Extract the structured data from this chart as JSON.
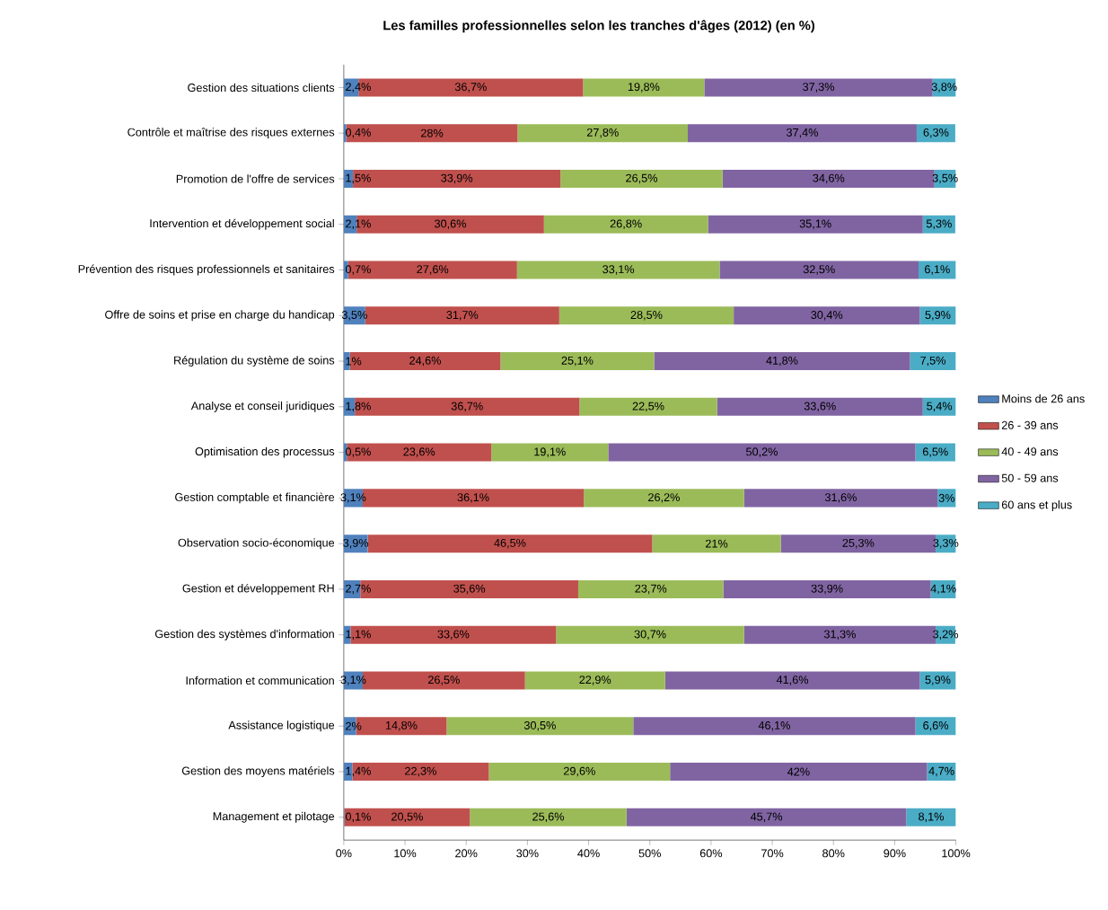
{
  "chart_data": {
    "type": "bar",
    "orientation": "horizontal",
    "stacked": true,
    "title": "Les familles professionnelles selon les tranches d'âges (2012) (en %)",
    "categories": [
      "Gestion des situations clients",
      "Contrôle et maîtrise des risques externes",
      "Promotion de l'offre de services",
      "Intervention et développement social",
      "Prévention des risques professionnels et sanitaires",
      "Offre de soins et prise en charge du handicap",
      "Régulation du système de soins",
      "Analyse et conseil juridiques",
      "Optimisation des processus",
      "Gestion comptable et financière",
      "Observation socio-économique",
      "Gestion et développement RH",
      "Gestion des systèmes d'information",
      "Information et communication",
      "Assistance logistique",
      "Gestion des moyens matériels",
      "Management et pilotage"
    ],
    "series": [
      {
        "name": "Moins de 26 ans",
        "color": "#4f81bd",
        "values": [
          2.4,
          0.4,
          1.5,
          2.1,
          0.7,
          3.5,
          1,
          1.8,
          0.5,
          3.1,
          3.9,
          2.7,
          1.1,
          3.1,
          2,
          1.4,
          0.1
        ],
        "value_labels": [
          "2,4%",
          "0,4%",
          "1,5%",
          "2,1%",
          "0,7%",
          "3,5%",
          "1%",
          "1,8%",
          "0,5%",
          "3,1%",
          "3,9%",
          "2,7%",
          "1,1%",
          "3,1%",
          "2%",
          "1,4%",
          "0,1%"
        ]
      },
      {
        "name": "26 - 39 ans",
        "color": "#c0504d",
        "values": [
          36.7,
          28,
          33.9,
          30.6,
          27.6,
          31.7,
          24.6,
          36.7,
          23.6,
          36.1,
          46.5,
          35.6,
          33.6,
          26.5,
          14.8,
          22.3,
          20.5
        ],
        "value_labels": [
          "36,7%",
          "28%",
          "33,9%",
          "30,6%",
          "27,6%",
          "31,7%",
          "24,6%",
          "36,7%",
          "23,6%",
          "36,1%",
          "46,5%",
          "35,6%",
          "33,6%",
          "26,5%",
          "14,8%",
          "22,3%",
          "20,5%"
        ]
      },
      {
        "name": "40 - 49 ans",
        "color": "#9bbb59",
        "values": [
          19.8,
          27.8,
          26.5,
          26.8,
          33.1,
          28.5,
          25.1,
          22.5,
          19.1,
          26.2,
          21,
          23.7,
          30.7,
          22.9,
          30.5,
          29.6,
          25.6
        ],
        "value_labels": [
          "19,8%",
          "27,8%",
          "26,5%",
          "26,8%",
          "33,1%",
          "28,5%",
          "25,1%",
          "22,5%",
          "19,1%",
          "26,2%",
          "21%",
          "23,7%",
          "30,7%",
          "22,9%",
          "30,5%",
          "29,6%",
          "25,6%"
        ]
      },
      {
        "name": "50 - 59 ans",
        "color": "#8064a2",
        "values": [
          37.3,
          37.4,
          34.6,
          35.1,
          32.5,
          30.4,
          41.8,
          33.6,
          50.2,
          31.6,
          25.3,
          33.9,
          31.3,
          41.6,
          46.1,
          42,
          45.7
        ],
        "value_labels": [
          "37,3%",
          "37,4%",
          "34,6%",
          "35,1%",
          "32,5%",
          "30,4%",
          "41,8%",
          "33,6%",
          "50,2%",
          "31,6%",
          "25,3%",
          "33,9%",
          "31,3%",
          "41,6%",
          "46,1%",
          "42%",
          "45,7%"
        ]
      },
      {
        "name": "60 ans et plus",
        "color": "#4bacc6",
        "values": [
          3.8,
          6.3,
          3.5,
          5.3,
          6.1,
          5.9,
          7.5,
          5.4,
          6.5,
          3,
          3.3,
          4.1,
          3.2,
          5.9,
          6.6,
          4.7,
          8.1
        ],
        "value_labels": [
          "3,8%",
          "6,3%",
          "3,5%",
          "5,3%",
          "6,1%",
          "5,9%",
          "7,5%",
          "5,4%",
          "6,5%",
          "3%",
          "3,3%",
          "4,1%",
          "3,2%",
          "5,9%",
          "6,6%",
          "4,7%",
          "8,1%"
        ]
      }
    ],
    "xlim": [
      0,
      100
    ],
    "xticks": [
      {
        "value": 0,
        "label": "0%"
      },
      {
        "value": 10,
        "label": "10%"
      },
      {
        "value": 20,
        "label": "20%"
      },
      {
        "value": 30,
        "label": "30%"
      },
      {
        "value": 40,
        "label": "40%"
      },
      {
        "value": 50,
        "label": "50%"
      },
      {
        "value": 60,
        "label": "60%"
      },
      {
        "value": 70,
        "label": "70%"
      },
      {
        "value": 80,
        "label": "80%"
      },
      {
        "value": 90,
        "label": "90%"
      },
      {
        "value": 100,
        "label": "100%"
      }
    ],
    "legend": "right"
  }
}
